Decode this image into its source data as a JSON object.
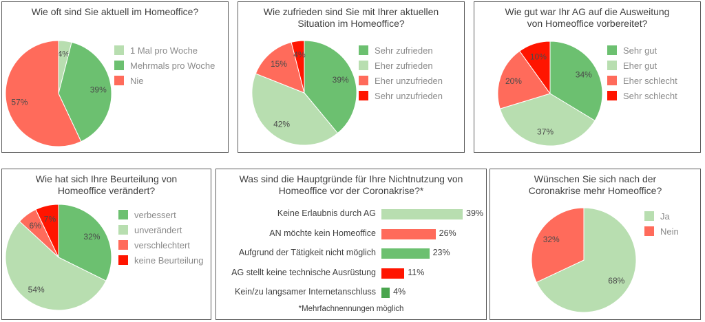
{
  "colors": {
    "light_green": "#b8deb0",
    "mid_green": "#6cc070",
    "dark_green": "#4aa54e",
    "salmon": "#ff6b5b",
    "red": "#ff1500"
  },
  "chart_data": [
    {
      "type": "pie",
      "title": "Wie oft sind Sie aktuell im Homeoffice?",
      "categories": [
        "1 Mal pro Woche",
        "Mehrmals pro Woche",
        "Nie"
      ],
      "values": [
        4,
        39,
        57
      ],
      "labels": [
        "4%",
        "39%",
        "57%"
      ],
      "colors": [
        "#b8deb0",
        "#6cc070",
        "#ff6b5b"
      ]
    },
    {
      "type": "pie",
      "title": "Wie zufrieden sind Sie mit Ihrer aktuellen Situation im Homeoffice?",
      "categories": [
        "Sehr zufrieden",
        "Eher zufrieden",
        "Eher unzufrieden",
        "Sehr unzufrieden"
      ],
      "values": [
        39,
        42,
        15,
        4
      ],
      "labels": [
        "39%",
        "42%",
        "15%",
        "4%"
      ],
      "colors": [
        "#6cc070",
        "#b8deb0",
        "#ff6b5b",
        "#ff1500"
      ]
    },
    {
      "type": "pie",
      "title": "Wie gut war Ihr AG auf die Ausweitung von Homeoffice vorbereitet?",
      "categories": [
        "Sehr gut",
        "Eher gut",
        "Eher schlecht",
        "Sehr schlecht"
      ],
      "values": [
        34,
        37,
        20,
        10
      ],
      "labels": [
        "34%",
        "37%",
        "20%",
        "10%"
      ],
      "colors": [
        "#6cc070",
        "#b8deb0",
        "#ff6b5b",
        "#ff1500"
      ]
    },
    {
      "type": "pie",
      "title": "Wie hat sich Ihre Beurteilung von Homeoffice verändert?",
      "categories": [
        "verbessert",
        "unverändert",
        "verschlechtert",
        "keine Beurteilung"
      ],
      "values": [
        32,
        54,
        6,
        7
      ],
      "labels": [
        "32%",
        "54%",
        "6%",
        "7%"
      ],
      "colors": [
        "#6cc070",
        "#b8deb0",
        "#ff6b5b",
        "#ff1500"
      ]
    },
    {
      "type": "bar",
      "orientation": "horizontal",
      "title": "Was sind die Hauptgründe für Ihre Nichtnutzung von Homeoffice vor der Coronakrise?*",
      "categories": [
        "Keine Erlaubnis durch AG",
        "AN möchte kein Homeoffice",
        "Aufgrund der Tätigkeit nicht möglich",
        "AG stellt keine technische Ausrüstung",
        "Kein/zu langsamer Internetanschluss"
      ],
      "values": [
        39,
        26,
        23,
        11,
        4
      ],
      "labels": [
        "39%",
        "26%",
        "23%",
        "11%",
        "4%"
      ],
      "colors": [
        "#b8deb0",
        "#ff6b5b",
        "#6cc070",
        "#ff1500",
        "#4aa54e"
      ],
      "footnote": "*Mehrfachnennungen möglich"
    },
    {
      "type": "pie",
      "title": "Wünschen Sie sich nach der Coronakrise mehr Homeoffice?",
      "categories": [
        "Ja",
        "Nein"
      ],
      "values": [
        68,
        32
      ],
      "labels": [
        "68%",
        "32%"
      ],
      "colors": [
        "#b8deb0",
        "#ff6b5b"
      ]
    }
  ],
  "titles": [
    [
      "Wie oft sind Sie aktuell im Homeoffice?"
    ],
    [
      "Wie zufrieden sind Sie mit Ihrer aktuellen",
      "Situation im Homeoffice?"
    ],
    [
      "Wie gut war Ihr AG auf die Ausweitung",
      "von Homeoffice vorbereitet?"
    ],
    [
      "Wie hat sich Ihre Beurteilung von",
      "Homeoffice verändert?"
    ],
    [
      "Was sind die Hauptgründe für Ihre Nichtnutzung von",
      "Homeoffice vor der Coronakrise?*"
    ],
    [
      "Wünschen Sie sich nach der",
      "Coronakrise mehr Homeoffice?"
    ]
  ]
}
